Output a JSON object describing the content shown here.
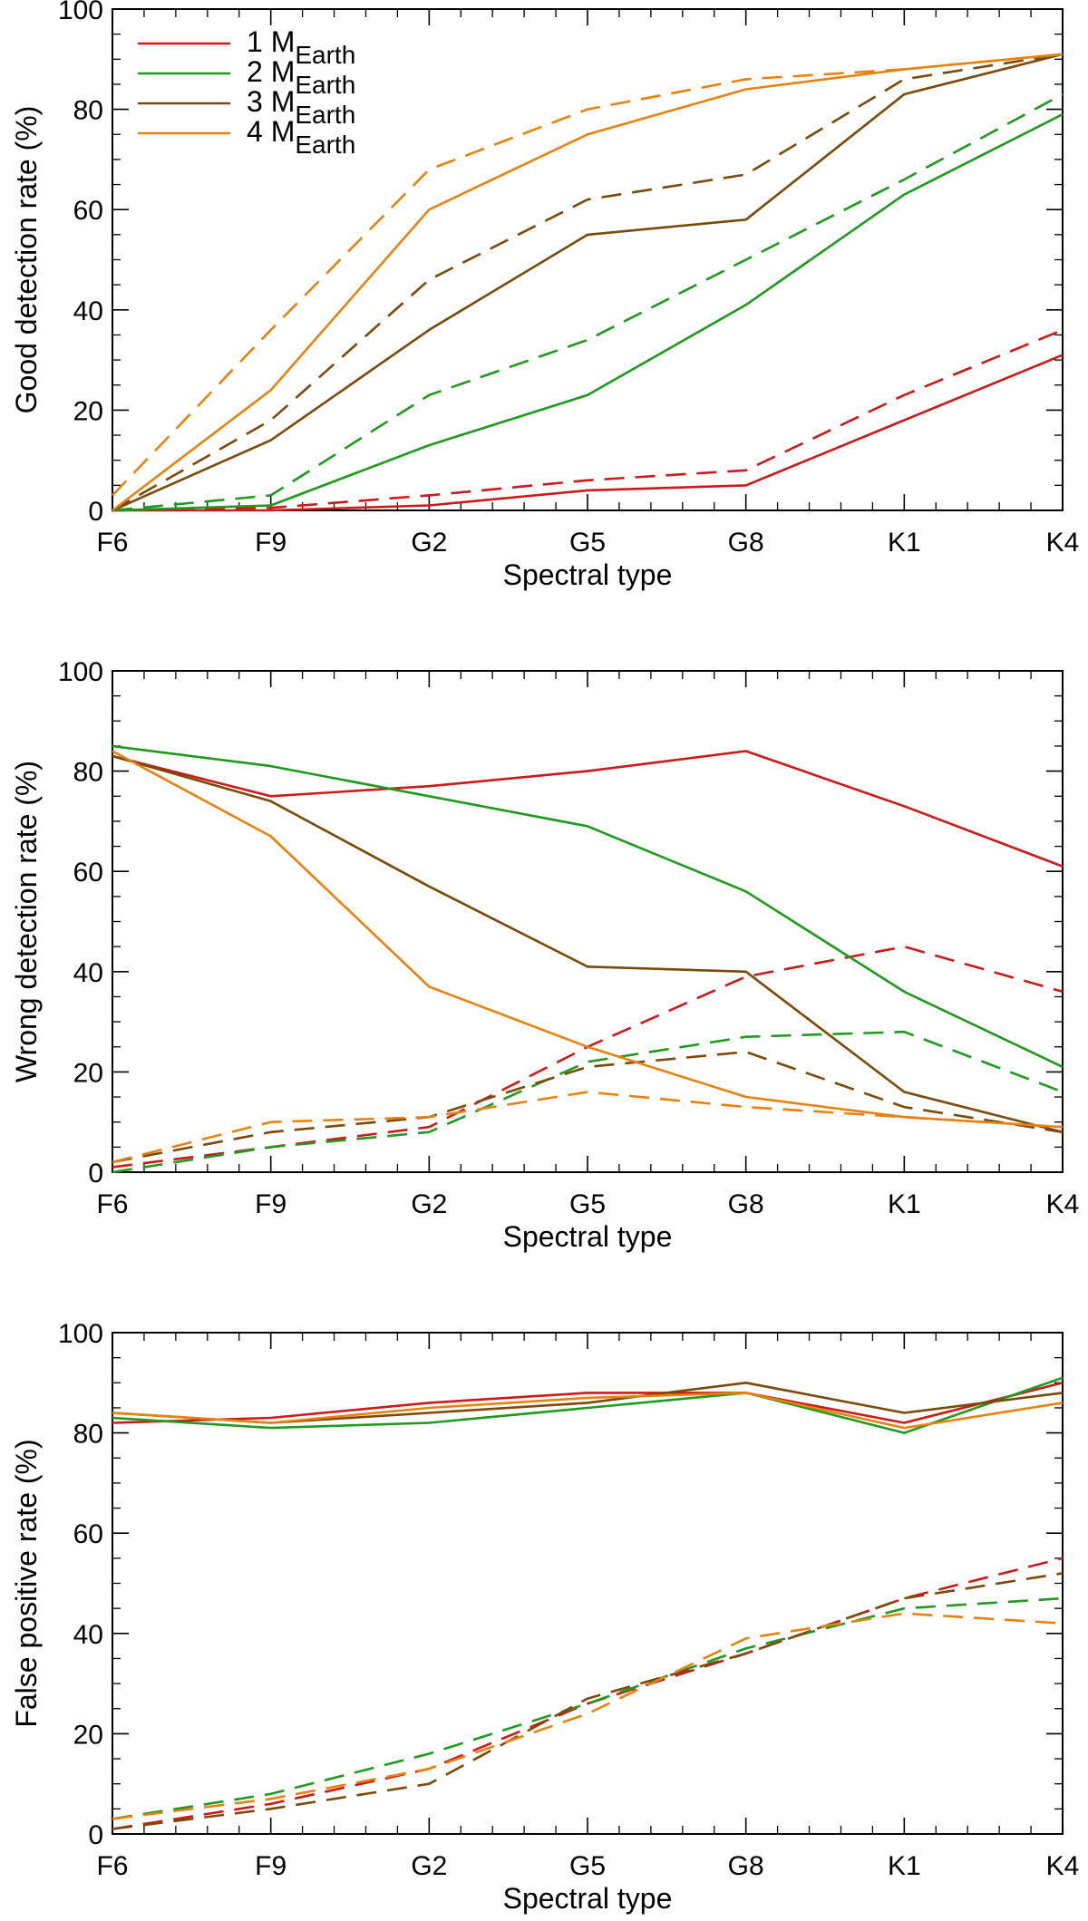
{
  "chart_data": [
    {
      "type": "line",
      "xlabel": "Spectral type",
      "ylabel": "Good detection rate (%)",
      "ylim": [
        0,
        100
      ],
      "yticks": [
        0,
        20,
        40,
        60,
        80,
        100
      ],
      "categories": [
        "F6",
        "F9",
        "G2",
        "G5",
        "G8",
        "K1",
        "K4"
      ],
      "legend": {
        "position": "top-left",
        "entries": [
          {
            "series": 0,
            "prefix": "1 M",
            "sub": "Earth"
          },
          {
            "series": 1,
            "prefix": "2 M",
            "sub": "Earth"
          },
          {
            "series": 2,
            "prefix": "3 M",
            "sub": "Earth"
          },
          {
            "series": 3,
            "prefix": "4 M",
            "sub": "Earth"
          }
        ]
      },
      "series": [
        {
          "name": "1 MEarth",
          "color": "#cc1a1a",
          "style": "solid",
          "values": [
            0,
            0,
            1,
            4,
            5,
            18,
            31
          ]
        },
        {
          "name": "1 MEarth",
          "color": "#cc1a1a",
          "style": "dashed",
          "values": [
            0,
            0.5,
            3,
            6,
            8,
            23,
            36
          ]
        },
        {
          "name": "2 MEarth",
          "color": "#1f9a1f",
          "style": "solid",
          "values": [
            0,
            1,
            13,
            23,
            41,
            63,
            79
          ]
        },
        {
          "name": "2 MEarth",
          "color": "#1f9a1f",
          "style": "dashed",
          "values": [
            0,
            3,
            23,
            34,
            50,
            66,
            83
          ]
        },
        {
          "name": "3 MEarth",
          "color": "#7a4a0a",
          "style": "solid",
          "values": [
            0,
            14,
            36,
            55,
            58,
            83,
            91
          ]
        },
        {
          "name": "3 MEarth",
          "color": "#7a4a0a",
          "style": "dashed",
          "values": [
            0,
            18,
            46,
            62,
            67,
            86,
            91
          ]
        },
        {
          "name": "4 MEarth",
          "color": "#e8820f",
          "style": "solid",
          "values": [
            0,
            24,
            60,
            75,
            84,
            88,
            91
          ]
        },
        {
          "name": "4 MEarth",
          "color": "#e8820f",
          "style": "dashed",
          "values": [
            3,
            36,
            68,
            80,
            86,
            88,
            91
          ]
        }
      ]
    },
    {
      "type": "line",
      "xlabel": "Spectral type",
      "ylabel": "Wrong detection rate (%)",
      "ylim": [
        0,
        100
      ],
      "yticks": [
        0,
        20,
        40,
        60,
        80,
        100
      ],
      "categories": [
        "F6",
        "F9",
        "G2",
        "G5",
        "G8",
        "K1",
        "K4"
      ],
      "series": [
        {
          "name": "1 MEarth",
          "color": "#cc1a1a",
          "style": "solid",
          "values": [
            83,
            75,
            77,
            80,
            84,
            73,
            61
          ]
        },
        {
          "name": "1 MEarth",
          "color": "#cc1a1a",
          "style": "dashed",
          "values": [
            1,
            5,
            9,
            25,
            39,
            45,
            36
          ]
        },
        {
          "name": "2 MEarth",
          "color": "#1f9a1f",
          "style": "solid",
          "values": [
            85,
            81,
            75,
            69,
            56,
            36,
            21
          ]
        },
        {
          "name": "2 MEarth",
          "color": "#1f9a1f",
          "style": "dashed",
          "values": [
            0,
            5,
            8,
            22,
            27,
            28,
            16
          ]
        },
        {
          "name": "3 MEarth",
          "color": "#7a4a0a",
          "style": "solid",
          "values": [
            83,
            74,
            57,
            41,
            40,
            16,
            8
          ]
        },
        {
          "name": "3 MEarth",
          "color": "#7a4a0a",
          "style": "dashed",
          "values": [
            2,
            8,
            11,
            21,
            24,
            13,
            8
          ]
        },
        {
          "name": "4 MEarth",
          "color": "#e8820f",
          "style": "solid",
          "values": [
            84,
            67,
            37,
            25,
            15,
            11,
            9
          ]
        },
        {
          "name": "4 MEarth",
          "color": "#e8820f",
          "style": "dashed",
          "values": [
            2,
            10,
            11,
            16,
            13,
            11,
            9
          ]
        }
      ]
    },
    {
      "type": "line",
      "xlabel": "Spectral type",
      "ylabel": "False positive rate (%)",
      "ylim": [
        0,
        100
      ],
      "yticks": [
        0,
        20,
        40,
        60,
        80,
        100
      ],
      "categories": [
        "F6",
        "F9",
        "G2",
        "G5",
        "G8",
        "K1",
        "K4"
      ],
      "series": [
        {
          "name": "1 MEarth",
          "color": "#cc1a1a",
          "style": "solid",
          "values": [
            82,
            83,
            86,
            88,
            88,
            82,
            90
          ]
        },
        {
          "name": "1 MEarth",
          "color": "#cc1a1a",
          "style": "dashed",
          "values": [
            1,
            6,
            13,
            26,
            36,
            47,
            55
          ]
        },
        {
          "name": "2 MEarth",
          "color": "#1f9a1f",
          "style": "solid",
          "values": [
            83,
            81,
            82,
            85,
            88,
            80,
            91
          ]
        },
        {
          "name": "2 MEarth",
          "color": "#1f9a1f",
          "style": "dashed",
          "values": [
            3,
            8,
            16,
            26,
            37,
            45,
            47
          ]
        },
        {
          "name": "3 MEarth",
          "color": "#7a4a0a",
          "style": "solid",
          "values": [
            84,
            82,
            84,
            86,
            90,
            84,
            88
          ]
        },
        {
          "name": "3 MEarth",
          "color": "#7a4a0a",
          "style": "dashed",
          "values": [
            1,
            5,
            10,
            27,
            36,
            47,
            52
          ]
        },
        {
          "name": "4 MEarth",
          "color": "#e8820f",
          "style": "solid",
          "values": [
            84,
            82,
            85,
            87,
            88,
            81,
            86
          ]
        },
        {
          "name": "4 MEarth",
          "color": "#e8820f",
          "style": "dashed",
          "values": [
            3,
            7,
            13,
            24,
            39,
            44,
            42
          ]
        }
      ]
    }
  ]
}
